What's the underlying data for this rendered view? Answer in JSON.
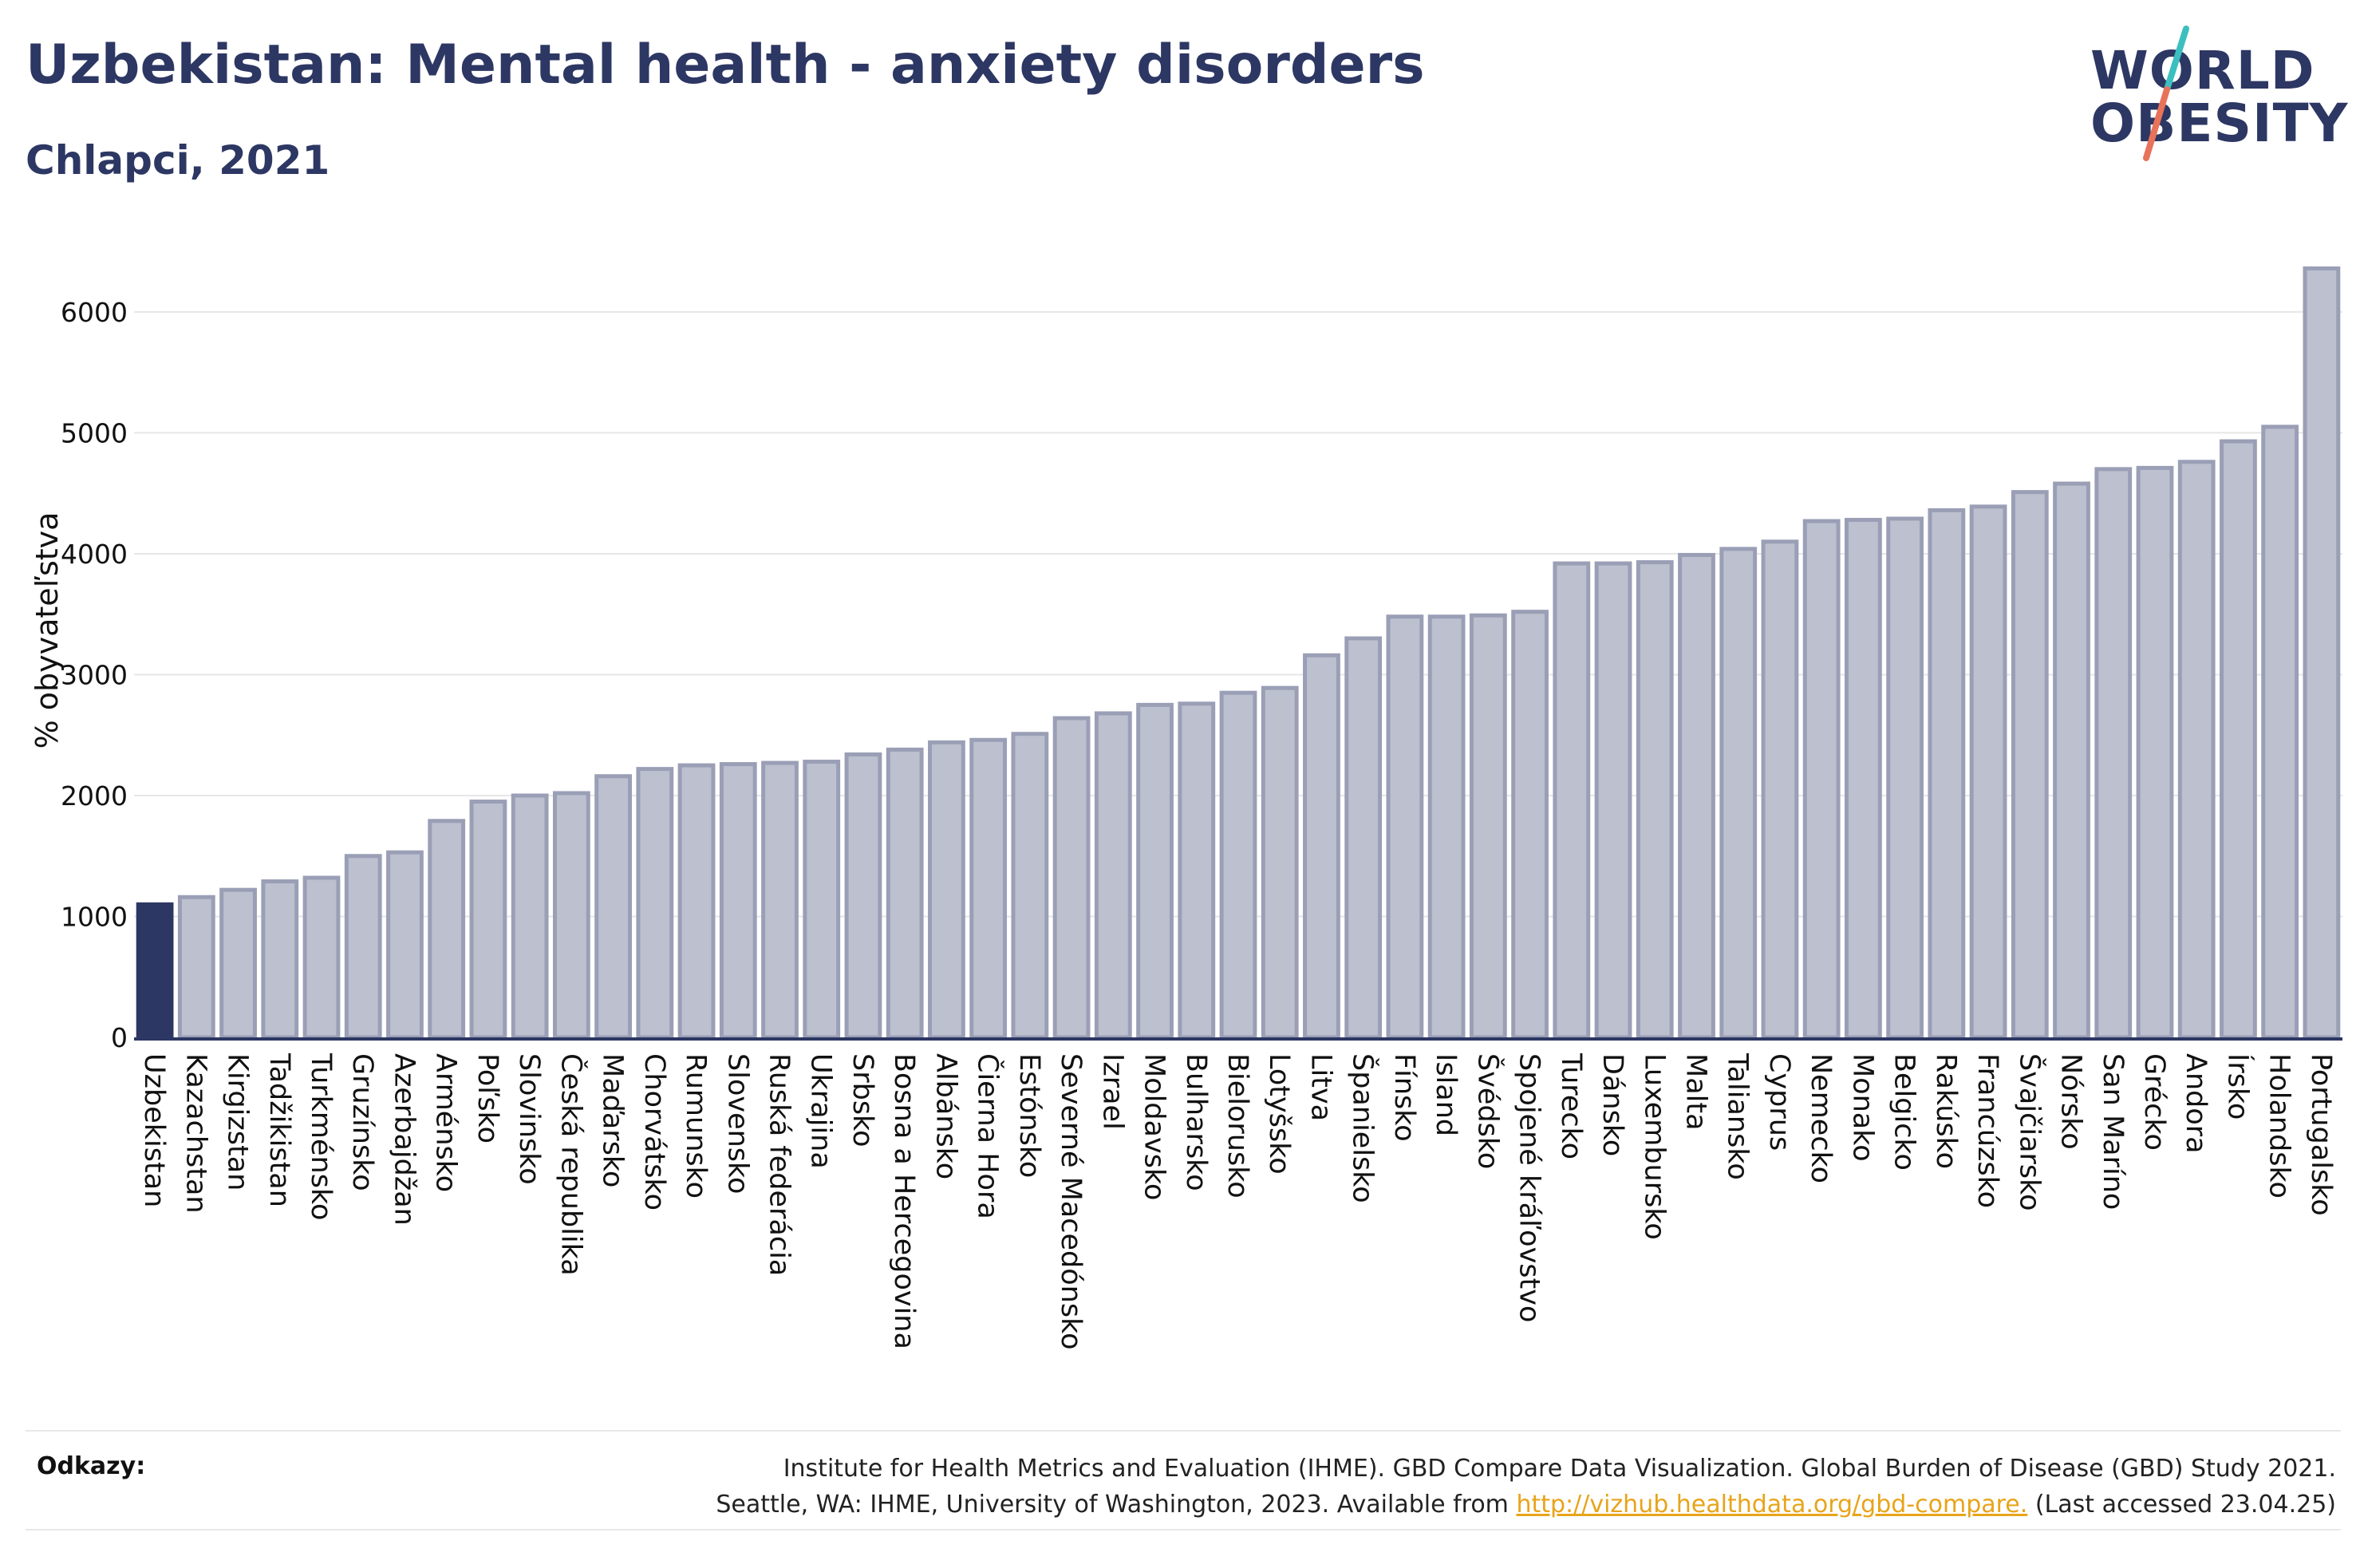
{
  "header": {
    "title": "Uzbekistan: Mental health - anxiety disorders",
    "subtitle": "Chlapci, 2021"
  },
  "logo": {
    "line1": "WORLD",
    "line2": "OBESITY",
    "colors": {
      "text": "#2d3763",
      "slash_top": "#3bbfbf",
      "slash_bottom": "#e8735a"
    }
  },
  "colors": {
    "highlight_bar": "#2d3763",
    "bar_fill": "#bcc0cf",
    "bar_stroke": "#9a9fb6",
    "grid": "#e6e6e6",
    "axis": "#2d3763",
    "link": "#e8a41a"
  },
  "chart_data": {
    "type": "bar",
    "title": "Uzbekistan: Mental health - anxiety disorders",
    "subtitle": "Chlapci, 2021",
    "ylabel": "% obyvateľstva",
    "xlabel": "",
    "ylim": [
      0,
      6600
    ],
    "yticks": [
      0,
      1000,
      2000,
      3000,
      4000,
      5000,
      6000
    ],
    "grid": true,
    "highlight": "Uzbekistan",
    "categories": [
      "Uzbekistan",
      "Kazachstan",
      "Kirgizstan",
      "Tadžikistan",
      "Turkménsko",
      "Gruzínsko",
      "Azerbajdžan",
      "Arménsko",
      "Poľsko",
      "Slovinsko",
      "Česká republika",
      "Maďarsko",
      "Chorvátsko",
      "Rumunsko",
      "Slovensko",
      "Ruská federácia",
      "Ukrajina",
      "Srbsko",
      "Bosna a Hercegovina",
      "Albánsko",
      "Čierna Hora",
      "Estónsko",
      "Severné Macedónsko",
      "Izrael",
      "Moldavsko",
      "Bulharsko",
      "Bielorusko",
      "Lotyšsko",
      "Litva",
      "Španielsko",
      "Fínsko",
      "Island",
      "Švédsko",
      "Spojené kráľovstvo",
      "Turecko",
      "Dánsko",
      "Luxembursko",
      "Malta",
      "Taliansko",
      "Cyprus",
      "Nemecko",
      "Monako",
      "Belgicko",
      "Rakúsko",
      "Francúzsko",
      "Švajčiarsko",
      "Nórsko",
      "San Maríno",
      "Grécko",
      "Andora",
      "Írsko",
      "Holandsko",
      "Portugalsko"
    ],
    "values": [
      1100,
      1160,
      1220,
      1290,
      1320,
      1500,
      1530,
      1790,
      1950,
      2000,
      2020,
      2160,
      2220,
      2250,
      2260,
      2270,
      2280,
      2340,
      2380,
      2440,
      2460,
      2510,
      2640,
      2680,
      2750,
      2760,
      2850,
      2890,
      3160,
      3300,
      3480,
      3480,
      3490,
      3520,
      3920,
      3920,
      3930,
      3990,
      4040,
      4100,
      4270,
      4280,
      4290,
      4360,
      4390,
      4510,
      4580,
      4700,
      4710,
      4760,
      4930,
      5050,
      6360
    ]
  },
  "footer": {
    "label": "Odkazy:",
    "line1": "Institute for Health Metrics and Evaluation (IHME). GBD Compare Data Visualization. Global Burden of Disease (GBD) Study 2021.",
    "line2_before": "Seattle, WA: IHME, University of Washington, 2023. Available from ",
    "link": "http://vizhub.healthdata.org/gbd-compare.",
    "line2_after": " (Last accessed 23.04.25)"
  }
}
